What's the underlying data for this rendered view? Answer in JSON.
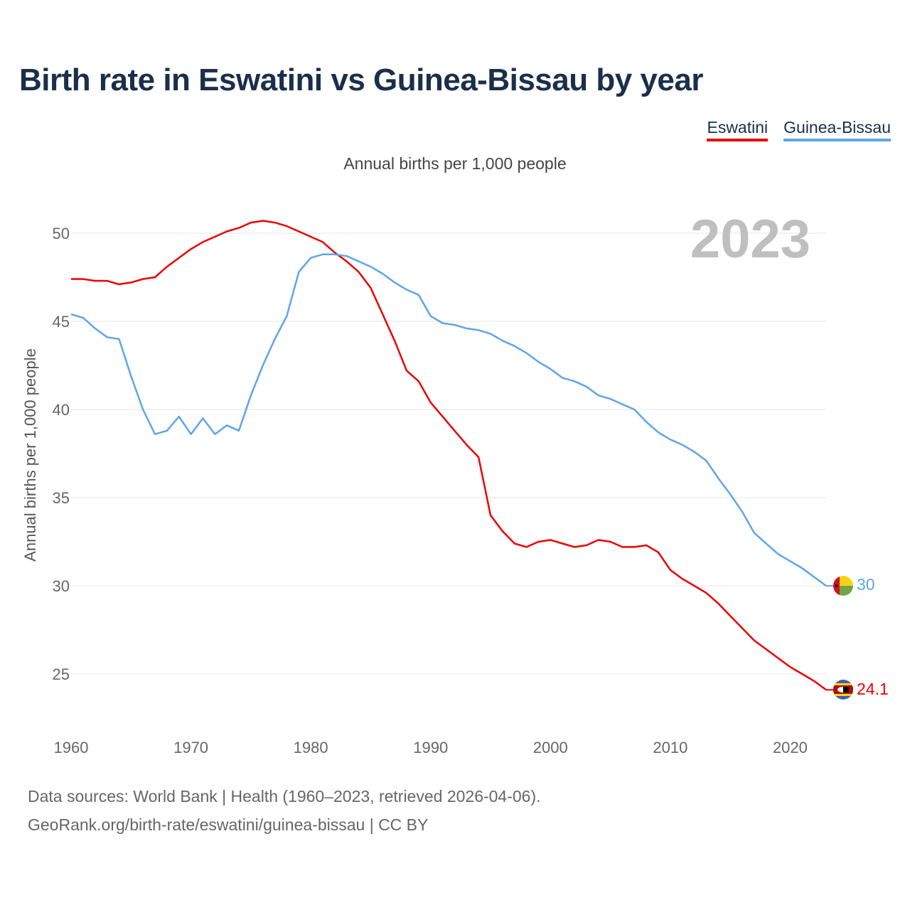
{
  "title": "Birth rate in Eswatini vs Guinea-Bissau by year",
  "subtitle": "Annual births per 1,000 people",
  "legend": [
    {
      "label": "Eswatini",
      "color": "#ee0000"
    },
    {
      "label": "Guinea-Bissau",
      "color": "#5fa5e8"
    }
  ],
  "year_display": "2023",
  "footer": {
    "source": "Data sources: World Bank | Health (1960–2023, retrieved 2026-04-06).",
    "credit": "GeoRank.org/birth-rate/eswatini/guinea-bissau | CC BY"
  },
  "chart_data": {
    "type": "line",
    "title": "Birth rate in Eswatini vs Guinea-Bissau by year",
    "xlabel": "",
    "ylabel": "Annual births per 1,000 people",
    "xlim": [
      1960,
      2023
    ],
    "ylim": [
      22.5,
      52.5
    ],
    "x_ticks": [
      1960,
      1970,
      1980,
      1990,
      2000,
      2010,
      2020
    ],
    "y_ticks": [
      25,
      30,
      35,
      40,
      45,
      50
    ],
    "grid": true,
    "legend_position": "top-right",
    "x": [
      1960,
      1961,
      1962,
      1963,
      1964,
      1965,
      1966,
      1967,
      1968,
      1969,
      1970,
      1971,
      1972,
      1973,
      1974,
      1975,
      1976,
      1977,
      1978,
      1979,
      1980,
      1981,
      1982,
      1983,
      1984,
      1985,
      1986,
      1987,
      1988,
      1989,
      1990,
      1991,
      1992,
      1993,
      1994,
      1995,
      1996,
      1997,
      1998,
      1999,
      2000,
      2001,
      2002,
      2003,
      2004,
      2005,
      2006,
      2007,
      2008,
      2009,
      2010,
      2011,
      2012,
      2013,
      2014,
      2015,
      2016,
      2017,
      2018,
      2019,
      2020,
      2021,
      2022,
      2023
    ],
    "series": [
      {
        "name": "Eswatini",
        "color": "#ee0000",
        "end_label": "24.1",
        "values": [
          47.4,
          47.4,
          47.3,
          47.3,
          47.1,
          47.2,
          47.4,
          47.5,
          48.1,
          48.6,
          49.1,
          49.5,
          49.8,
          50.1,
          50.3,
          50.6,
          50.7,
          50.6,
          50.4,
          50.1,
          49.8,
          49.5,
          48.9,
          48.4,
          47.8,
          46.9,
          45.4,
          43.9,
          42.2,
          41.6,
          40.4,
          39.6,
          38.8,
          38.0,
          37.3,
          34.0,
          33.1,
          32.4,
          32.2,
          32.5,
          32.6,
          32.4,
          32.2,
          32.3,
          32.6,
          32.5,
          32.2,
          32.2,
          32.3,
          31.9,
          30.9,
          30.4,
          30.0,
          29.6,
          29.0,
          28.3,
          27.6,
          26.9,
          26.4,
          25.9,
          25.4,
          25.0,
          24.6,
          24.1
        ]
      },
      {
        "name": "Guinea-Bissau",
        "color": "#5fa5e8",
        "end_label": "30",
        "values": [
          45.4,
          45.2,
          44.6,
          44.1,
          44.0,
          41.9,
          40.0,
          38.6,
          38.8,
          39.6,
          38.6,
          39.5,
          38.6,
          39.1,
          38.8,
          40.8,
          42.5,
          44.0,
          45.3,
          47.8,
          48.6,
          48.8,
          48.8,
          48.7,
          48.4,
          48.1,
          47.7,
          47.2,
          46.8,
          46.5,
          45.3,
          44.9,
          44.8,
          44.6,
          44.5,
          44.3,
          43.9,
          43.6,
          43.2,
          42.7,
          42.3,
          41.8,
          41.6,
          41.3,
          40.8,
          40.6,
          40.3,
          40.0,
          39.3,
          38.7,
          38.3,
          38.0,
          37.6,
          37.1,
          36.1,
          35.2,
          34.2,
          33.0,
          32.4,
          31.8,
          31.4,
          31.0,
          30.5,
          30.0
        ]
      }
    ]
  }
}
